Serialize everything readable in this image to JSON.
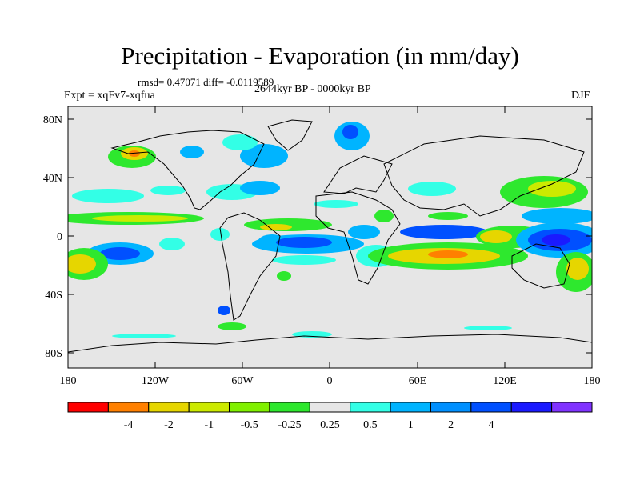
{
  "title": "Precipitation - Evaporation (in mm/day)",
  "stats": "rmsd= 0.47071 diff= -0.0119589",
  "period": "2644kyr BP - 0000kyr BP",
  "experiment": "Expt = xqFv7-xqfua",
  "season": "DJF",
  "lat_ticks": [
    "80N",
    "40N",
    "0",
    "40S",
    "80S"
  ],
  "lon_ticks": [
    "180",
    "120W",
    "60W",
    "0",
    "60E",
    "120E",
    "180"
  ],
  "colorbar": {
    "colors": [
      "#ff0000",
      "#ff8000",
      "#e6d600",
      "#ccea00",
      "#80f000",
      "#2ee82e",
      "#e6e6e6",
      "#33ffe6",
      "#00b4ff",
      "#0090ff",
      "#0050ff",
      "#1a1aff",
      "#8033ff"
    ],
    "labels": [
      "-4",
      "-2",
      "-1",
      "-0.5",
      "-0.25",
      "0.25",
      "0.5",
      "1",
      "2",
      "4"
    ]
  },
  "colors": {
    "land_bg": "#e6e6e6",
    "coast": "#000000"
  }
}
